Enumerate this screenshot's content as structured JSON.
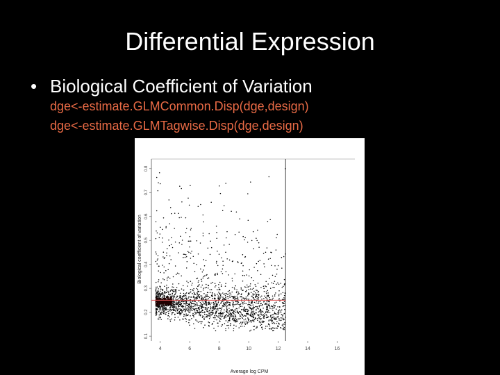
{
  "slide": {
    "title": "Differential Expression",
    "bullet": "Biological Coefficient of Variation",
    "code_lines": [
      "dge<-estimate.GLMCommon.Disp(dge,design)",
      "dge<-estimate.GLMTagwise.Disp(dge,design)"
    ]
  },
  "colors": {
    "background": "#000000",
    "title_text": "#ffffff",
    "code_text": "#e86a45",
    "common_line": "#e05050",
    "points": "#000000"
  },
  "chart_data": {
    "type": "scatter",
    "xlabel": "Average log CPM",
    "ylabel": "Biological coefficient of variation",
    "xlim": [
      3.4,
      17.2
    ],
    "ylim": [
      0.08,
      0.84
    ],
    "x_ticks": [
      "4",
      "6",
      "8",
      "10",
      "12",
      "14",
      "16"
    ],
    "y_ticks": [
      "0.1",
      "0.2",
      "0.3",
      "0.4",
      "0.5",
      "0.6",
      "0.7",
      "0.8"
    ],
    "common_dispersion_bcv": 0.25,
    "grid": false,
    "description_of_points": "tagwise BCV per gene; dense cloud near 0.2-0.3 at low CPM, decreasing and thinning toward ~12.5 average log CPM"
  }
}
